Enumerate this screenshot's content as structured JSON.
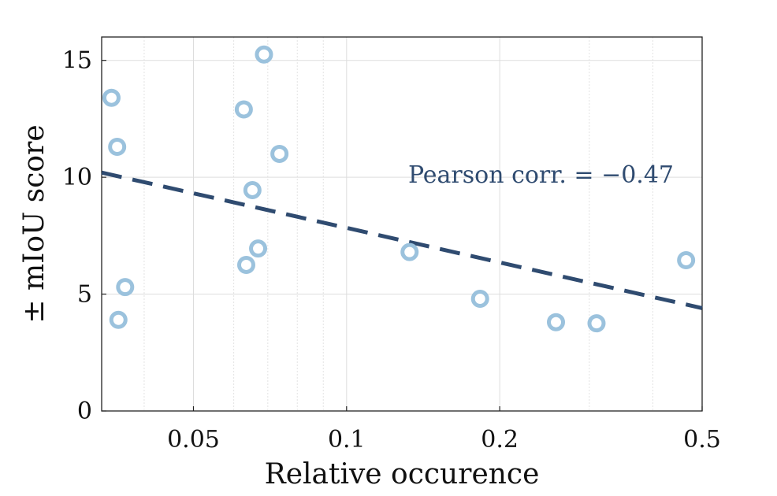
{
  "chart_data": {
    "type": "scatter",
    "title": "",
    "xlabel": "Relative occurence",
    "ylabel": "± mIoU score",
    "xscale": "log",
    "xlim": [
      0.033,
      0.5
    ],
    "ylim": [
      0,
      16
    ],
    "xticks": [
      {
        "value": 0.05,
        "label": "0.05"
      },
      {
        "value": 0.1,
        "label": "0.1"
      },
      {
        "value": 0.2,
        "label": "0.2"
      },
      {
        "value": 0.5,
        "label": "0.5"
      }
    ],
    "yticks": [
      {
        "value": 0,
        "label": "0"
      },
      {
        "value": 5,
        "label": "5"
      },
      {
        "value": 10,
        "label": "10"
      },
      {
        "value": 15,
        "label": "15"
      }
    ],
    "grid": true,
    "series": [
      {
        "name": "classes",
        "marker": "open-circle",
        "color": "#9bc2dd",
        "points": [
          {
            "x": 0.0345,
            "y": 13.4
          },
          {
            "x": 0.0354,
            "y": 11.3
          },
          {
            "x": 0.0356,
            "y": 3.9
          },
          {
            "x": 0.0367,
            "y": 5.3
          },
          {
            "x": 0.0628,
            "y": 12.9
          },
          {
            "x": 0.0635,
            "y": 6.25
          },
          {
            "x": 0.0653,
            "y": 9.45
          },
          {
            "x": 0.067,
            "y": 6.95
          },
          {
            "x": 0.0688,
            "y": 15.25
          },
          {
            "x": 0.0738,
            "y": 11.0
          },
          {
            "x": 0.133,
            "y": 6.8
          },
          {
            "x": 0.183,
            "y": 4.8
          },
          {
            "x": 0.258,
            "y": 3.8
          },
          {
            "x": 0.31,
            "y": 3.75
          },
          {
            "x": 0.465,
            "y": 6.45
          }
        ]
      }
    ],
    "trendline": {
      "style": "dashed",
      "color": "#2f4b70",
      "x": [
        0.033,
        0.5
      ],
      "y": [
        10.2,
        4.4
      ]
    },
    "annotation": {
      "text": "Pearson corr. = −0.47",
      "color": "#2f4b70",
      "position": "upper-right"
    }
  }
}
